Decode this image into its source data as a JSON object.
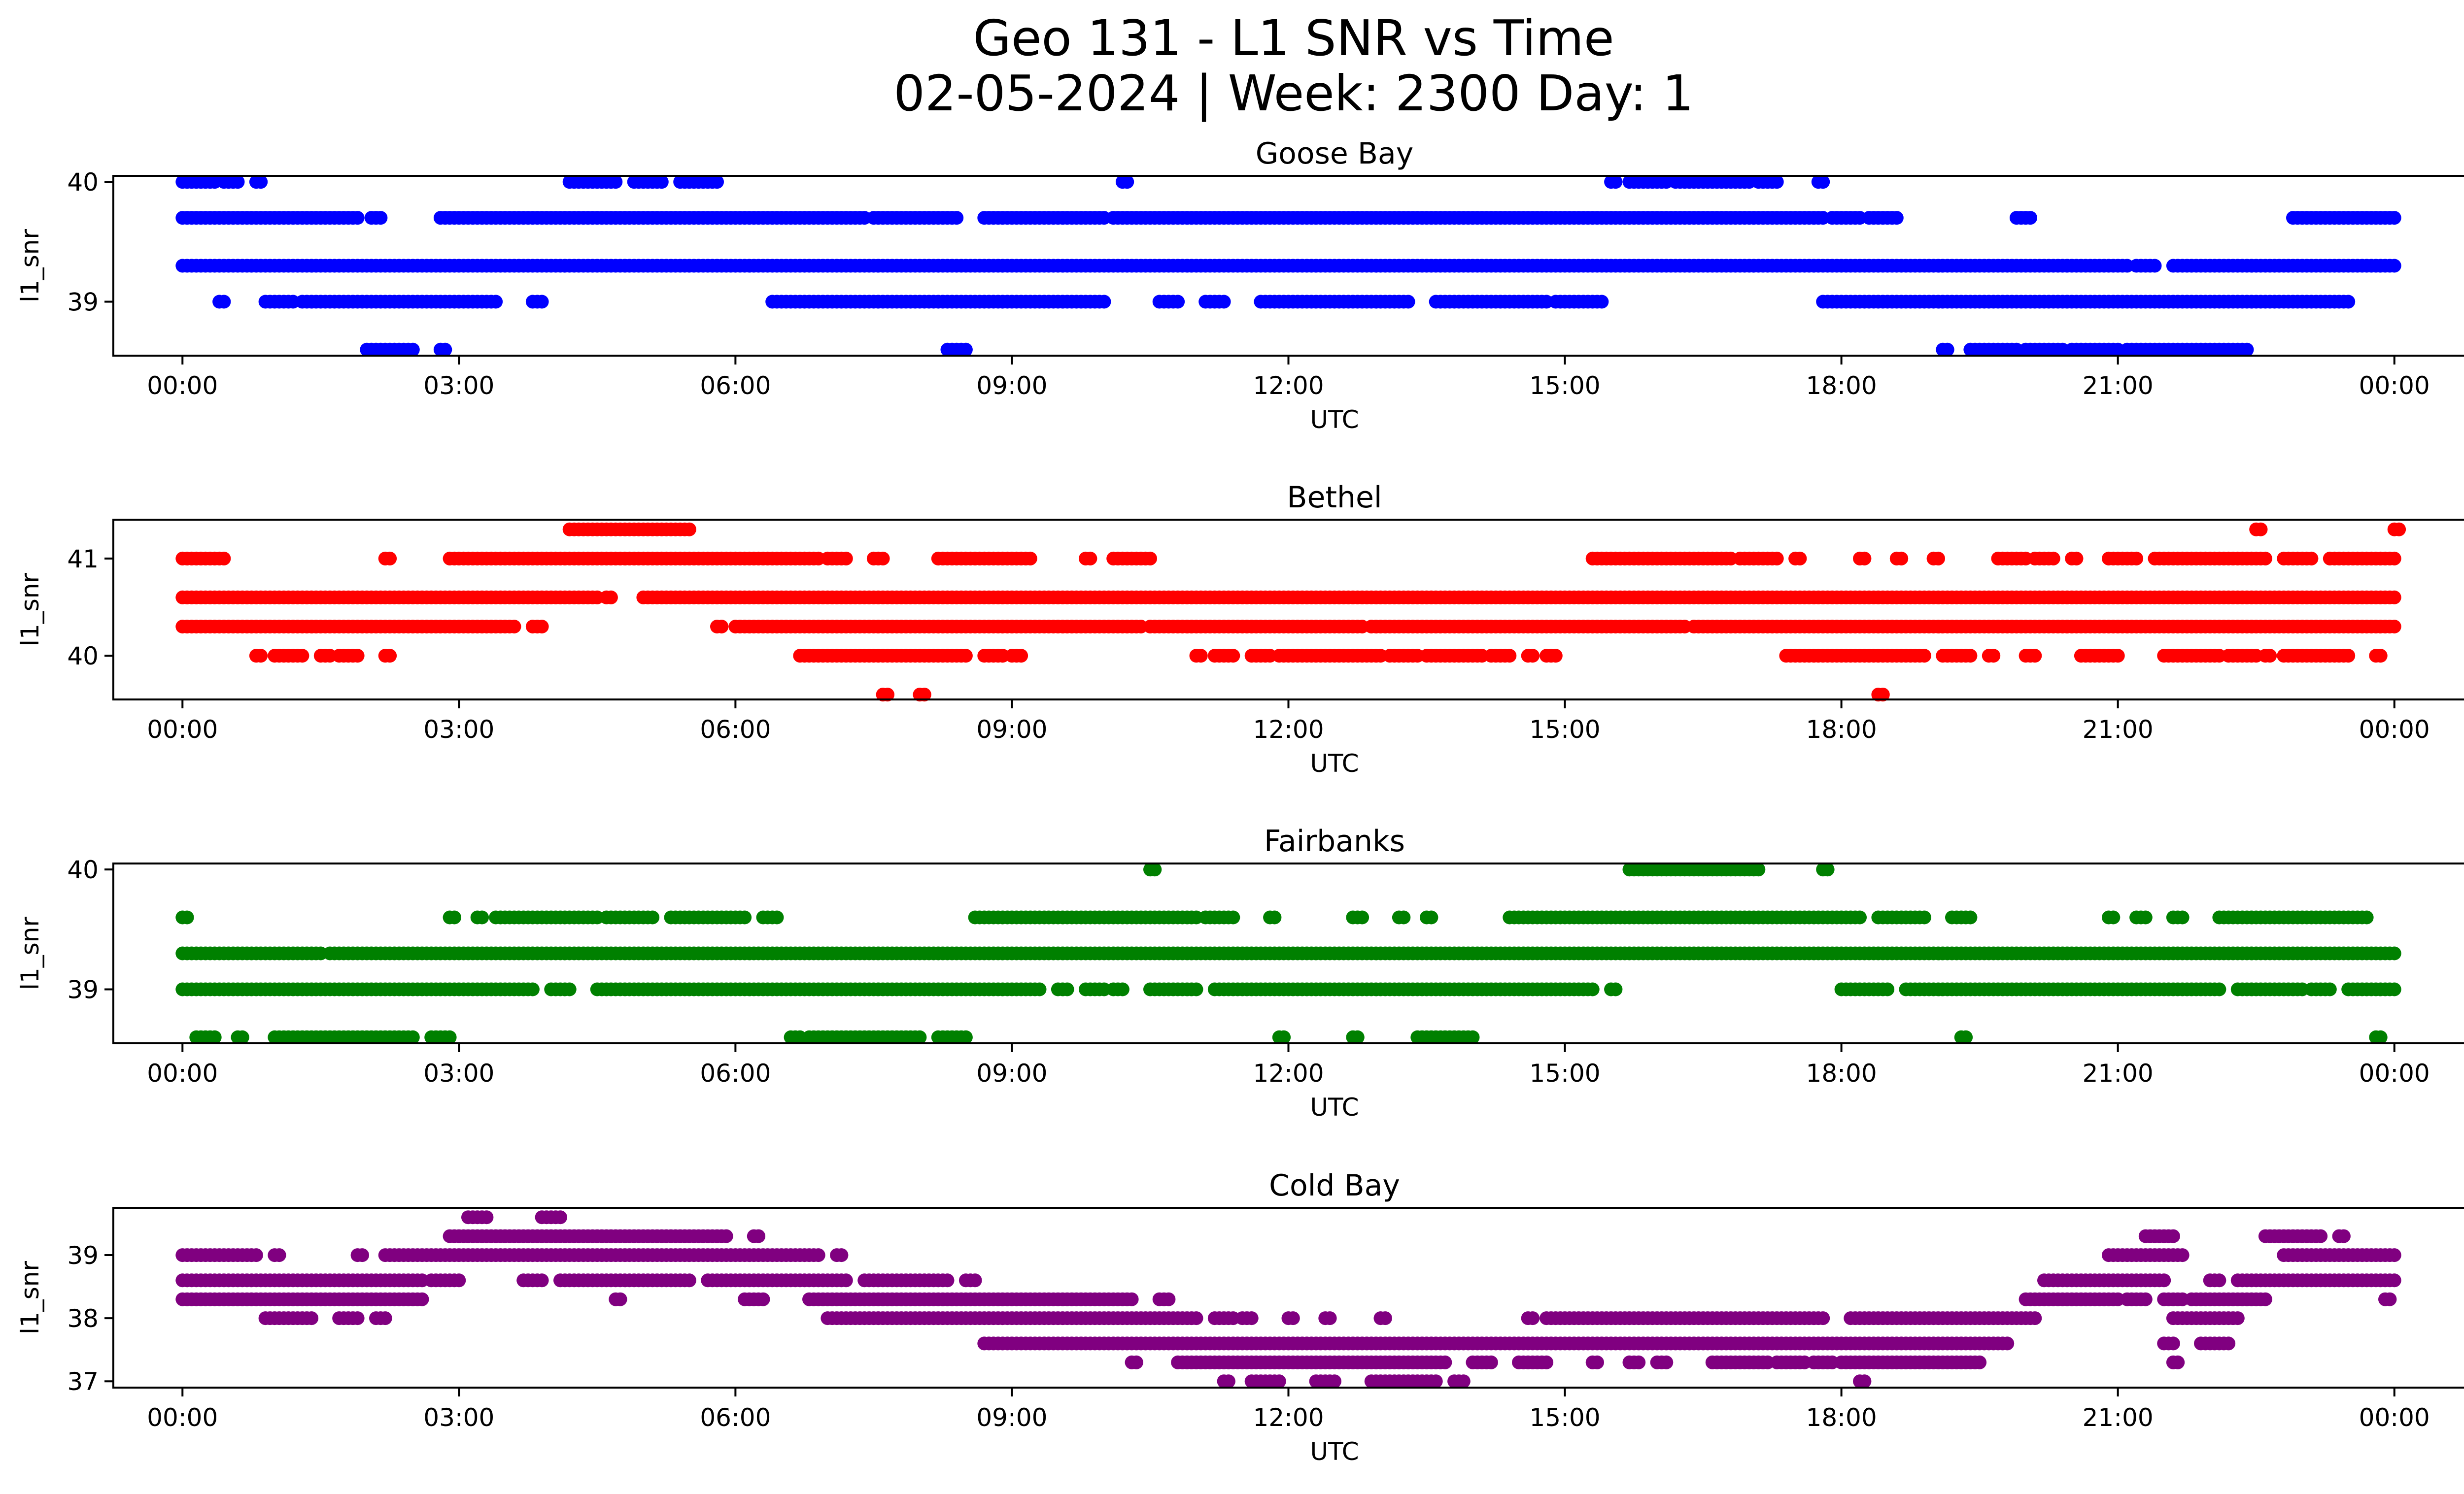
{
  "title_line1": "Geo 131 - L1 SNR vs Time",
  "title_line2": "02-05-2024 | Week: 2300 Day: 1",
  "chart_data": [
    {
      "type": "scatter",
      "title": "Goose Bay",
      "xlabel": "UTC",
      "ylabel": "l1_snr",
      "color": "#0000ff",
      "xlim": [
        -0.75,
        25.75
      ],
      "ylim": [
        38.55,
        40.05
      ],
      "xticks": [
        "00:00",
        "03:00",
        "06:00",
        "09:00",
        "12:00",
        "15:00",
        "18:00",
        "21:00",
        "00:00"
      ],
      "yticks": [
        39,
        40
      ],
      "runs": [
        {
          "y": 40.0,
          "x": [
            [
              0.0,
              0.35
            ],
            [
              0.45,
              0.6
            ],
            [
              0.8,
              0.85
            ],
            [
              4.2,
              4.7
            ],
            [
              4.9,
              5.2
            ],
            [
              5.4,
              5.8
            ],
            [
              10.2,
              10.25
            ],
            [
              15.5,
              15.55
            ],
            [
              15.7,
              16.1
            ],
            [
              16.2,
              17.0
            ],
            [
              17.1,
              17.3
            ],
            [
              17.75,
              17.8
            ]
          ]
        },
        {
          "y": 39.7,
          "x": [
            [
              0.0,
              1.9
            ],
            [
              2.05,
              2.15
            ],
            [
              2.8,
              6.8
            ],
            [
              6.85,
              7.4
            ],
            [
              7.5,
              8.4
            ],
            [
              8.7,
              10.0
            ],
            [
              10.1,
              17.8
            ],
            [
              17.9,
              18.2
            ],
            [
              18.3,
              18.6
            ],
            [
              19.9,
              20.05
            ],
            [
              22.9,
              24.0
            ]
          ]
        },
        {
          "y": 39.3,
          "x": [
            [
              0.0,
              19.8
            ],
            [
              19.85,
              21.1
            ],
            [
              21.2,
              21.4
            ],
            [
              21.6,
              24.0
            ]
          ]
        },
        {
          "y": 39.0,
          "x": [
            [
              0.4,
              0.45
            ],
            [
              0.9,
              1.2
            ],
            [
              1.3,
              3.4
            ],
            [
              3.8,
              3.9
            ],
            [
              6.4,
              10.0
            ],
            [
              10.6,
              10.8
            ],
            [
              11.1,
              11.3
            ],
            [
              11.7,
              13.3
            ],
            [
              13.6,
              14.8
            ],
            [
              14.9,
              15.4
            ],
            [
              17.8,
              23.5
            ]
          ]
        },
        {
          "y": 38.6,
          "x": [
            [
              2.0,
              2.5
            ],
            [
              2.8,
              2.85
            ],
            [
              8.3,
              8.5
            ],
            [
              19.1,
              19.15
            ],
            [
              19.4,
              19.9
            ],
            [
              20.0,
              20.4
            ],
            [
              20.5,
              21.0
            ],
            [
              21.1,
              22.4
            ]
          ]
        }
      ]
    },
    {
      "type": "scatter",
      "title": "Bethel",
      "xlabel": "UTC",
      "ylabel": "l1_snr",
      "color": "#ff0000",
      "xlim": [
        -0.75,
        25.75
      ],
      "ylim": [
        39.55,
        41.4
      ],
      "xticks": [
        "00:00",
        "03:00",
        "06:00",
        "09:00",
        "12:00",
        "15:00",
        "18:00",
        "21:00",
        "00:00"
      ],
      "yticks": [
        40,
        41
      ],
      "runs": [
        {
          "y": 41.3,
          "x": [
            [
              4.2,
              5.5
            ],
            [
              22.5,
              22.55
            ],
            [
              24.0,
              24.05
            ]
          ]
        },
        {
          "y": 41.0,
          "x": [
            [
              0.0,
              0.45
            ],
            [
              2.2,
              2.25
            ],
            [
              2.9,
              6.9
            ],
            [
              7.0,
              7.2
            ],
            [
              7.5,
              7.6
            ],
            [
              8.2,
              9.2
            ],
            [
              9.8,
              9.85
            ],
            [
              10.1,
              10.5
            ],
            [
              15.3,
              16.8
            ],
            [
              16.9,
              17.3
            ],
            [
              17.5,
              17.55
            ],
            [
              18.2,
              18.25
            ],
            [
              18.6,
              18.65
            ],
            [
              19.0,
              19.05
            ],
            [
              19.7,
              20.0
            ],
            [
              20.1,
              20.3
            ],
            [
              20.5,
              20.55
            ],
            [
              20.9,
              21.2
            ],
            [
              21.4,
              22.6
            ],
            [
              22.8,
              23.1
            ],
            [
              23.3,
              24.0
            ]
          ]
        },
        {
          "y": 40.6,
          "x": [
            [
              0.0,
              4.5
            ],
            [
              4.6,
              4.65
            ],
            [
              5.0,
              24.0
            ]
          ]
        },
        {
          "y": 40.3,
          "x": [
            [
              0.0,
              3.6
            ],
            [
              3.8,
              3.9
            ],
            [
              5.8,
              5.85
            ],
            [
              6.0,
              10.4
            ],
            [
              10.5,
              12.8
            ],
            [
              12.9,
              16.3
            ],
            [
              16.4,
              24.0
            ]
          ]
        },
        {
          "y": 40.0,
          "x": [
            [
              0.8,
              0.85
            ],
            [
              1.0,
              1.3
            ],
            [
              1.5,
              1.6
            ],
            [
              1.7,
              1.9
            ],
            [
              2.2,
              2.25
            ],
            [
              6.7,
              8.5
            ],
            [
              8.7,
              8.9
            ],
            [
              9.0,
              9.1
            ],
            [
              11.0,
              11.05
            ],
            [
              11.2,
              11.4
            ],
            [
              11.6,
              11.8
            ],
            [
              11.9,
              13.0
            ],
            [
              13.1,
              13.4
            ],
            [
              13.5,
              14.1
            ],
            [
              14.2,
              14.4
            ],
            [
              14.6,
              14.65
            ],
            [
              14.8,
              14.9
            ],
            [
              17.4,
              18.9
            ],
            [
              19.1,
              19.4
            ],
            [
              19.6,
              19.65
            ],
            [
              20.0,
              20.1
            ],
            [
              20.6,
              21.0
            ],
            [
              21.5,
              22.1
            ],
            [
              22.2,
              22.5
            ],
            [
              22.6,
              22.65
            ],
            [
              22.8,
              23.5
            ],
            [
              23.8,
              23.85
            ]
          ]
        },
        {
          "y": 39.6,
          "x": [
            [
              7.6,
              7.65
            ],
            [
              8.0,
              8.05
            ],
            [
              18.4,
              18.45
            ]
          ]
        }
      ]
    },
    {
      "type": "scatter",
      "title": "Fairbanks",
      "xlabel": "UTC",
      "ylabel": "l1_snr",
      "color": "#008000",
      "xlim": [
        -0.75,
        25.75
      ],
      "ylim": [
        38.55,
        40.05
      ],
      "xticks": [
        "00:00",
        "03:00",
        "06:00",
        "09:00",
        "12:00",
        "15:00",
        "18:00",
        "21:00",
        "00:00"
      ],
      "yticks": [
        39,
        40
      ],
      "runs": [
        {
          "y": 40.0,
          "x": [
            [
              10.5,
              10.55
            ],
            [
              15.7,
              17.1
            ],
            [
              17.8,
              17.85
            ]
          ]
        },
        {
          "y": 39.6,
          "x": [
            [
              0.0,
              0.05
            ],
            [
              2.9,
              2.95
            ],
            [
              3.2,
              3.25
            ],
            [
              3.4,
              4.5
            ],
            [
              4.6,
              5.1
            ],
            [
              5.3,
              6.1
            ],
            [
              6.3,
              6.45
            ],
            [
              8.6,
              11.0
            ],
            [
              11.1,
              11.4
            ],
            [
              11.8,
              11.85
            ],
            [
              12.7,
              12.8
            ],
            [
              13.2,
              13.25
            ],
            [
              13.5,
              13.55
            ],
            [
              14.4,
              18.2
            ],
            [
              18.4,
              18.9
            ],
            [
              19.2,
              19.4
            ],
            [
              20.9,
              20.95
            ],
            [
              21.2,
              21.3
            ],
            [
              21.6,
              21.7
            ],
            [
              22.1,
              23.7
            ]
          ]
        },
        {
          "y": 39.3,
          "x": [
            [
              0.0,
              1.5
            ],
            [
              1.6,
              24.0
            ]
          ]
        },
        {
          "y": 39.0,
          "x": [
            [
              0.0,
              3.8
            ],
            [
              4.0,
              4.2
            ],
            [
              4.5,
              9.3
            ],
            [
              9.5,
              9.6
            ],
            [
              9.8,
              10.0
            ],
            [
              10.1,
              10.2
            ],
            [
              10.5,
              11.0
            ],
            [
              11.2,
              15.3
            ],
            [
              15.5,
              15.55
            ],
            [
              18.0,
              18.5
            ],
            [
              18.7,
              22.1
            ],
            [
              22.3,
              23.0
            ],
            [
              23.1,
              23.3
            ],
            [
              23.5,
              24.0
            ]
          ]
        },
        {
          "y": 38.6,
          "x": [
            [
              0.15,
              0.35
            ],
            [
              0.6,
              0.65
            ],
            [
              1.0,
              2.5
            ],
            [
              2.7,
              2.9
            ],
            [
              6.6,
              6.7
            ],
            [
              6.8,
              8.0
            ],
            [
              8.2,
              8.5
            ],
            [
              11.9,
              11.95
            ],
            [
              12.7,
              12.75
            ],
            [
              13.4,
              14.0
            ],
            [
              19.3,
              19.35
            ],
            [
              23.8,
              23.85
            ]
          ]
        }
      ]
    },
    {
      "type": "scatter",
      "title": "Cold Bay",
      "xlabel": "UTC",
      "ylabel": "l1_snr",
      "color": "#800080",
      "xlim": [
        -0.75,
        25.75
      ],
      "ylim": [
        36.9,
        39.75
      ],
      "xticks": [
        "00:00",
        "03:00",
        "06:00",
        "09:00",
        "12:00",
        "15:00",
        "18:00",
        "21:00",
        "00:00"
      ],
      "yticks": [
        37,
        38,
        39
      ],
      "runs": [
        {
          "y": 39.6,
          "x": [
            [
              3.1,
              3.3
            ],
            [
              3.9,
              4.1
            ]
          ]
        },
        {
          "y": 39.3,
          "x": [
            [
              2.9,
              5.9
            ],
            [
              6.2,
              6.25
            ],
            [
              21.3,
              21.6
            ],
            [
              22.6,
              23.2
            ],
            [
              23.4,
              23.45
            ]
          ]
        },
        {
          "y": 39.0,
          "x": [
            [
              0.0,
              0.8
            ],
            [
              1.0,
              1.05
            ],
            [
              1.9,
              1.95
            ],
            [
              2.2,
              6.9
            ],
            [
              7.1,
              7.15
            ],
            [
              20.9,
              21.7
            ],
            [
              22.8,
              24.0
            ]
          ]
        },
        {
          "y": 38.6,
          "x": [
            [
              0.0,
              2.6
            ],
            [
              2.7,
              3.0
            ],
            [
              3.7,
              3.9
            ],
            [
              4.1,
              5.5
            ],
            [
              5.7,
              7.2
            ],
            [
              7.4,
              8.3
            ],
            [
              8.5,
              8.6
            ],
            [
              20.2,
              21.5
            ],
            [
              22.0,
              22.1
            ],
            [
              22.3,
              24.0
            ]
          ]
        },
        {
          "y": 38.3,
          "x": [
            [
              0.0,
              2.6
            ],
            [
              4.7,
              4.75
            ],
            [
              6.1,
              6.3
            ],
            [
              6.8,
              10.3
            ],
            [
              10.6,
              10.7
            ],
            [
              20.0,
              21.0
            ],
            [
              21.1,
              21.3
            ],
            [
              21.5,
              21.7
            ],
            [
              21.8,
              22.6
            ],
            [
              23.9,
              23.95
            ]
          ]
        },
        {
          "y": 38.0,
          "x": [
            [
              0.9,
              1.4
            ],
            [
              1.7,
              1.9
            ],
            [
              2.1,
              2.2
            ],
            [
              7.0,
              11.0
            ],
            [
              11.2,
              11.4
            ],
            [
              11.5,
              11.6
            ],
            [
              12.0,
              12.05
            ],
            [
              12.4,
              12.45
            ],
            [
              13.0,
              13.05
            ],
            [
              14.6,
              14.65
            ],
            [
              14.8,
              17.8
            ],
            [
              18.1,
              20.1
            ],
            [
              21.6,
              22.3
            ]
          ]
        },
        {
          "y": 37.6,
          "x": [
            [
              8.7,
              19.8
            ],
            [
              21.5,
              21.6
            ],
            [
              21.9,
              22.2
            ]
          ]
        },
        {
          "y": 37.3,
          "x": [
            [
              10.3,
              10.35
            ],
            [
              10.8,
              13.7
            ],
            [
              14.0,
              14.2
            ],
            [
              14.5,
              14.8
            ],
            [
              15.3,
              15.35
            ],
            [
              15.7,
              15.8
            ],
            [
              16.0,
              16.1
            ],
            [
              16.6,
              17.2
            ],
            [
              17.3,
              17.6
            ],
            [
              17.7,
              17.9
            ],
            [
              18.0,
              19.5
            ],
            [
              21.6,
              21.65
            ]
          ]
        },
        {
          "y": 37.0,
          "x": [
            [
              11.3,
              11.35
            ],
            [
              11.6,
              11.9
            ],
            [
              12.3,
              12.5
            ],
            [
              12.9,
              13.6
            ],
            [
              13.8,
              13.9
            ],
            [
              18.2,
              18.25
            ]
          ]
        }
      ]
    }
  ]
}
